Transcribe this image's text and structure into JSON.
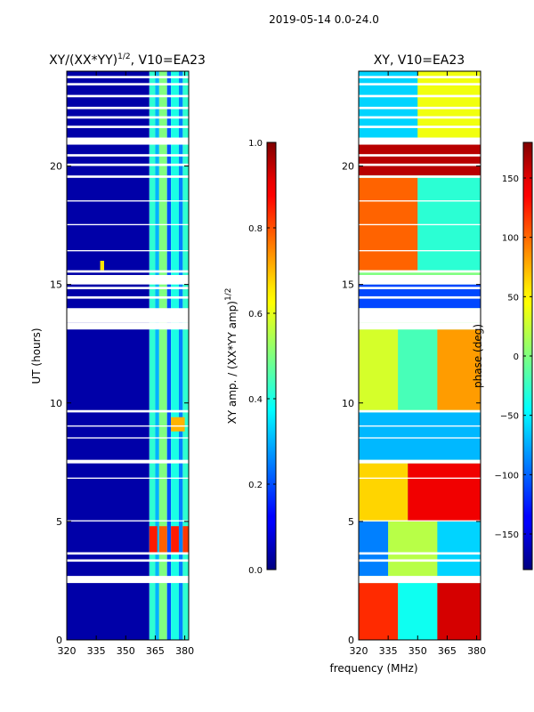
{
  "suptitle": "2019-05-14 0.0-24.0",
  "xlabel": "frequency (MHz)",
  "chart_data": [
    {
      "type": "heatmap",
      "title_main": "XY/(XX*YY)",
      "title_sup": "1/2",
      "title_rest": ", V10=EA23",
      "ylabel": "UT (hours)",
      "xlim": [
        320,
        382
      ],
      "ylim": [
        0,
        24
      ],
      "xticks": [
        320,
        335,
        350,
        365,
        380
      ],
      "yticks": [
        0,
        5,
        10,
        15,
        20
      ],
      "colorbar": {
        "label_main": "XY amp. / (XX*YY amp)",
        "label_sup": "1/2",
        "range": [
          0.0,
          1.0
        ],
        "ticks": [
          0.0,
          0.2,
          0.4,
          0.6,
          0.8,
          1.0
        ],
        "tick_labels": [
          "0.0",
          "0.2",
          "0.4",
          "0.6",
          "0.8",
          "1.0"
        ],
        "colormap": "jet"
      },
      "regions": [
        {
          "x": [
            320,
            362
          ],
          "y": [
            0,
            24
          ],
          "value": 0.04
        },
        {
          "x": [
            362,
            365
          ],
          "y": [
            0,
            24
          ],
          "value": 0.42
        },
        {
          "x": [
            365,
            367
          ],
          "y": [
            0,
            24
          ],
          "value": 0.3
        },
        {
          "x": [
            367,
            371
          ],
          "y": [
            0,
            24
          ],
          "value": 0.5
        },
        {
          "x": [
            371,
            373
          ],
          "y": [
            0,
            24
          ],
          "value": 0.2
        },
        {
          "x": [
            373,
            377
          ],
          "y": [
            0,
            24
          ],
          "value": 0.4
        },
        {
          "x": [
            377,
            379
          ],
          "y": [
            0,
            24
          ],
          "value": 0.25
        },
        {
          "x": [
            379,
            382
          ],
          "y": [
            0,
            24
          ],
          "value": 0.42
        },
        {
          "x": [
            362,
            366
          ],
          "y": [
            3.7,
            4.8
          ],
          "value": 0.85
        },
        {
          "x": [
            367,
            371
          ],
          "y": [
            3.7,
            4.8
          ],
          "value": 0.78
        },
        {
          "x": [
            373,
            377
          ],
          "y": [
            3.7,
            4.8
          ],
          "value": 0.85
        },
        {
          "x": [
            379,
            382
          ],
          "y": [
            3.7,
            4.8
          ],
          "value": 0.82
        },
        {
          "x": [
            373,
            380
          ],
          "y": [
            8.8,
            9.4
          ],
          "value": 0.7
        },
        {
          "x": [
            337,
            339
          ],
          "y": [
            15.6,
            16.0
          ],
          "value": 0.65
        }
      ],
      "gaps": [
        [
          2.4,
          2.7
        ],
        [
          3.3,
          3.4
        ],
        [
          3.6,
          3.7
        ],
        [
          5.0,
          5.05
        ],
        [
          6.8,
          6.85
        ],
        [
          7.45,
          7.6
        ],
        [
          8.5,
          8.55
        ],
        [
          9.0,
          9.05
        ],
        [
          9.6,
          9.7
        ],
        [
          13.1,
          13.4
        ],
        [
          13.4,
          14.0
        ],
        [
          14.4,
          14.5
        ],
        [
          14.8,
          14.9
        ],
        [
          15.0,
          15.4
        ],
        [
          15.5,
          15.6
        ],
        [
          16.4,
          16.45
        ],
        [
          17.5,
          17.55
        ],
        [
          18.5,
          18.55
        ],
        [
          19.5,
          19.6
        ],
        [
          20.0,
          20.1
        ],
        [
          20.4,
          20.5
        ],
        [
          20.9,
          21.2
        ],
        [
          21.6,
          21.7
        ],
        [
          22.0,
          22.1
        ],
        [
          22.4,
          22.5
        ],
        [
          22.9,
          23.0
        ],
        [
          23.4,
          23.5
        ],
        [
          23.7,
          23.8
        ]
      ]
    },
    {
      "type": "heatmap",
      "title_main": "XY, V10=EA23",
      "xlim": [
        320,
        382
      ],
      "ylim": [
        0,
        24
      ],
      "xticks": [
        320,
        335,
        350,
        365,
        380
      ],
      "yticks": [
        0,
        5,
        10,
        15,
        20
      ],
      "colorbar": {
        "label_main": "phase (deg)",
        "range": [
          -180,
          180
        ],
        "ticks": [
          -150,
          -100,
          -50,
          0,
          50,
          100,
          150
        ],
        "tick_labels": [
          "−150",
          "−100",
          "−50",
          "0",
          "50",
          "100",
          "150"
        ],
        "colormap": "jet"
      },
      "regions": [
        {
          "x": [
            320,
            382
          ],
          "y": [
            0,
            24
          ],
          "value": 0
        },
        {
          "x": [
            320,
            340
          ],
          "y": [
            0,
            2.4
          ],
          "value": 120
        },
        {
          "x": [
            340,
            360
          ],
          "y": [
            0,
            2.4
          ],
          "value": -40
        },
        {
          "x": [
            360,
            382
          ],
          "y": [
            0,
            2.4
          ],
          "value": 150
        },
        {
          "x": [
            320,
            335
          ],
          "y": [
            2.7,
            5.0
          ],
          "value": -90
        },
        {
          "x": [
            335,
            360
          ],
          "y": [
            2.7,
            5.0
          ],
          "value": 20
        },
        {
          "x": [
            360,
            382
          ],
          "y": [
            2.7,
            5.0
          ],
          "value": -60
        },
        {
          "x": [
            320,
            345
          ],
          "y": [
            5.0,
            7.45
          ],
          "value": 60
        },
        {
          "x": [
            345,
            382
          ],
          "y": [
            5.0,
            7.45
          ],
          "value": 140
        },
        {
          "x": [
            320,
            382
          ],
          "y": [
            7.6,
            9.6
          ],
          "value": -70
        },
        {
          "x": [
            320,
            340
          ],
          "y": [
            9.7,
            13.1
          ],
          "value": 30
        },
        {
          "x": [
            340,
            360
          ],
          "y": [
            9.7,
            13.1
          ],
          "value": -20
        },
        {
          "x": [
            360,
            382
          ],
          "y": [
            9.7,
            13.1
          ],
          "value": 80
        },
        {
          "x": [
            320,
            382
          ],
          "y": [
            14.0,
            15.0
          ],
          "value": -110
        },
        {
          "x": [
            320,
            350
          ],
          "y": [
            15.6,
            19.5
          ],
          "value": 100
        },
        {
          "x": [
            350,
            382
          ],
          "y": [
            15.6,
            19.5
          ],
          "value": -30
        },
        {
          "x": [
            320,
            382
          ],
          "y": [
            19.6,
            21.0
          ],
          "value": 160
        },
        {
          "x": [
            320,
            350
          ],
          "y": [
            21.2,
            24
          ],
          "value": -60
        },
        {
          "x": [
            350,
            382
          ],
          "y": [
            21.2,
            24
          ],
          "value": 40
        }
      ],
      "gaps": [
        [
          2.4,
          2.7
        ],
        [
          3.3,
          3.4
        ],
        [
          3.6,
          3.7
        ],
        [
          5.0,
          5.05
        ],
        [
          6.8,
          6.85
        ],
        [
          7.45,
          7.6
        ],
        [
          8.5,
          8.55
        ],
        [
          9.0,
          9.05
        ],
        [
          9.6,
          9.7
        ],
        [
          13.1,
          13.4
        ],
        [
          13.4,
          14.0
        ],
        [
          14.4,
          14.5
        ],
        [
          14.8,
          14.9
        ],
        [
          15.0,
          15.4
        ],
        [
          15.5,
          15.6
        ],
        [
          16.4,
          16.45
        ],
        [
          17.5,
          17.55
        ],
        [
          18.5,
          18.55
        ],
        [
          19.5,
          19.6
        ],
        [
          20.0,
          20.1
        ],
        [
          20.4,
          20.5
        ],
        [
          20.9,
          21.2
        ],
        [
          21.6,
          21.7
        ],
        [
          22.0,
          22.1
        ],
        [
          22.4,
          22.5
        ],
        [
          22.9,
          23.0
        ],
        [
          23.4,
          23.5
        ],
        [
          23.7,
          23.8
        ]
      ]
    }
  ]
}
